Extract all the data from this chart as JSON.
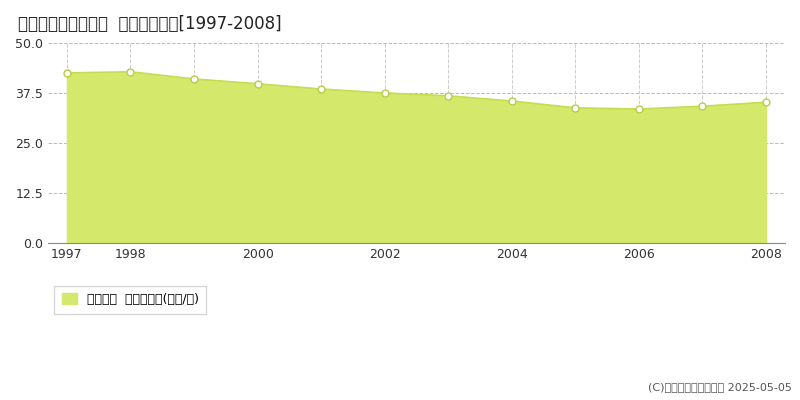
{
  "title": "仙台市太白区大野田  基準地価推移[1997-2008]",
  "years": [
    1997,
    1998,
    1999,
    2000,
    2001,
    2002,
    2003,
    2004,
    2005,
    2006,
    2007,
    2008
  ],
  "values": [
    42.5,
    42.8,
    41.0,
    39.8,
    38.5,
    37.5,
    36.8,
    35.5,
    33.8,
    33.5,
    34.2,
    35.2
  ],
  "ylim": [
    0,
    50
  ],
  "yticks": [
    0,
    12.5,
    25,
    37.5,
    50
  ],
  "xticks": [
    1997,
    1998,
    2000,
    2002,
    2004,
    2006,
    2008
  ],
  "fill_color": "#d4e96b",
  "line_color": "#c8dc50",
  "marker_facecolor": "#ffffff",
  "marker_edgecolor": "#b8cc44",
  "bg_color": "#ffffff",
  "plot_bg_color": "#ffffff",
  "grid_h_color": "#bbbbbb",
  "grid_v_color": "#cccccc",
  "grid_h_style": "--",
  "grid_v_style": "--",
  "legend_label": "基準地価  平均坪単価(万円/坪)",
  "copyright_text": "(C)土地価格ドットコム 2025-05-05",
  "title_fontsize": 12,
  "axis_fontsize": 9,
  "legend_fontsize": 9,
  "copyright_fontsize": 8,
  "spine_bottom_color": "#888888",
  "tick_label_color": "#333333"
}
